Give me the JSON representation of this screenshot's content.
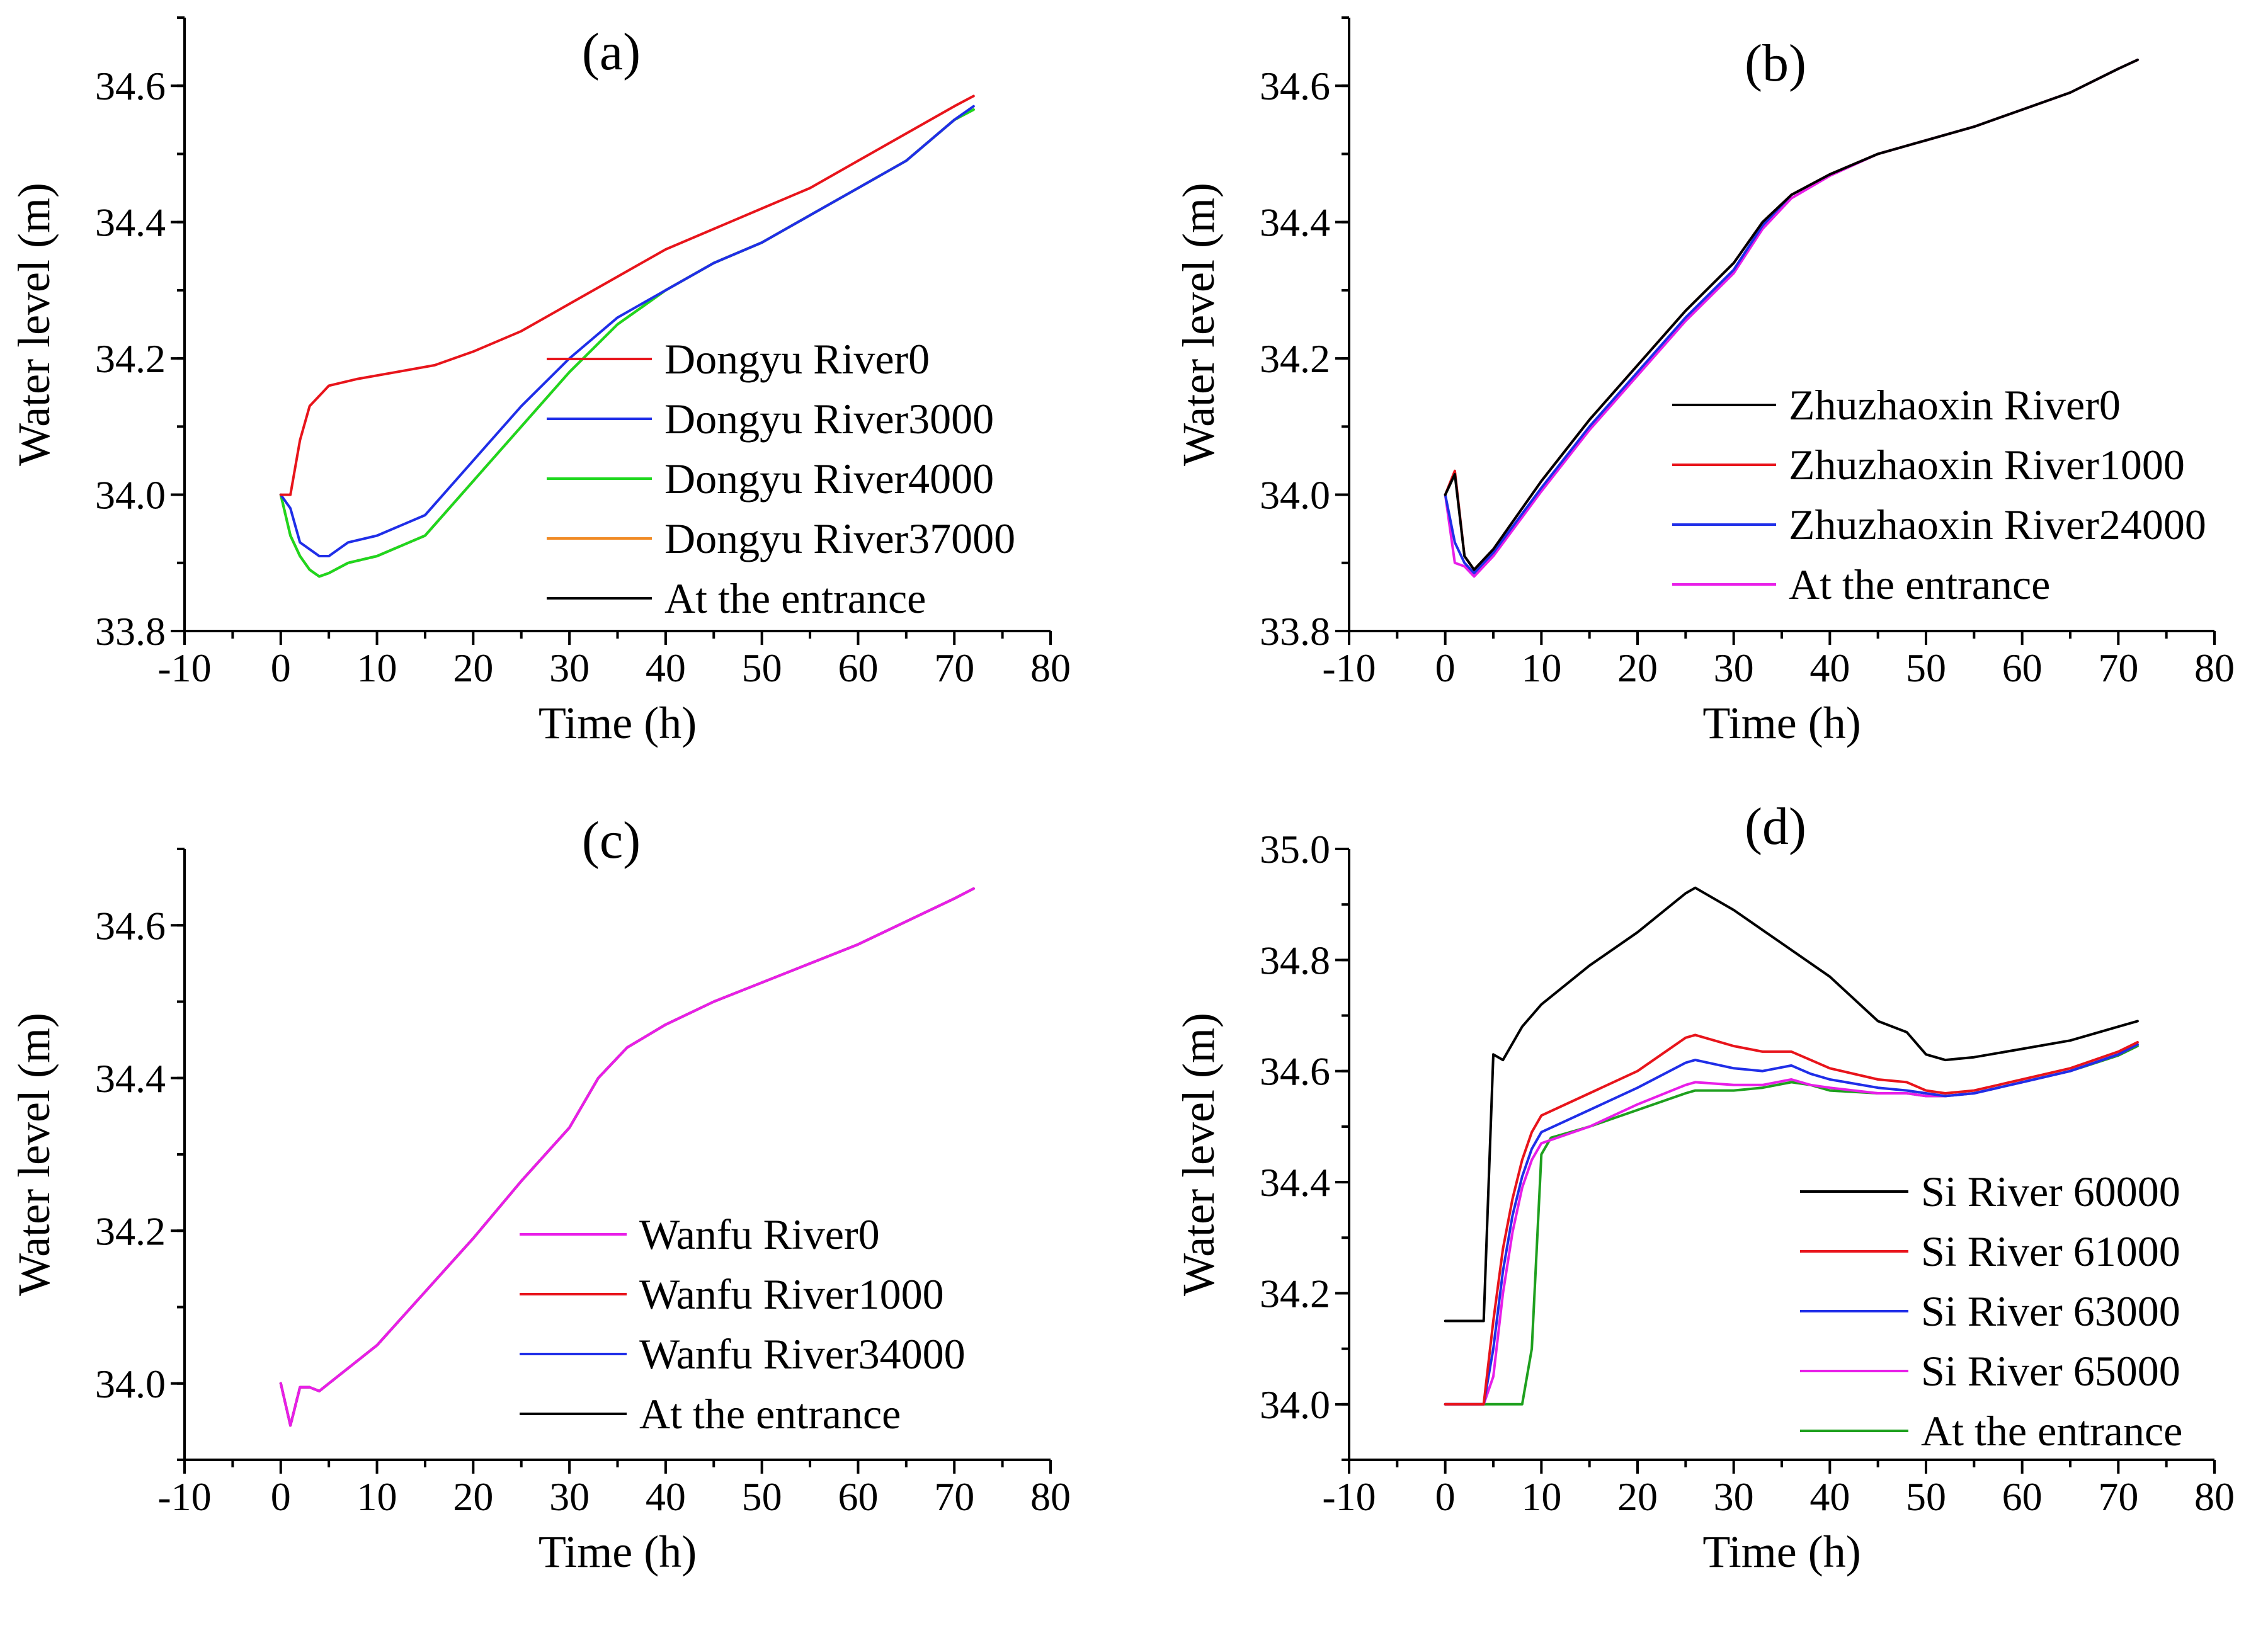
{
  "chart_data": [
    {
      "type": "line",
      "panel_label": "(a)",
      "xlabel": "Time (h)",
      "ylabel": "Water level (m)",
      "xlim": [
        -10,
        80
      ],
      "ylim": [
        33.8,
        34.7
      ],
      "xticks": [
        -10,
        0,
        10,
        20,
        30,
        40,
        50,
        60,
        70,
        80
      ],
      "xtick_labels": [
        "-10",
        "0",
        "10",
        "20",
        "30",
        "40",
        "50",
        "60",
        "70",
        "80"
      ],
      "yticks": [
        33.8,
        34.0,
        34.2,
        34.4,
        34.6
      ],
      "ytick_labels": [
        "33.8",
        "34.0",
        "34.2",
        "34.4",
        "34.6"
      ],
      "legend_position": "center-right",
      "series": [
        {
          "name": "Dongyu River0",
          "color": "#e8141b",
          "x": [
            0,
            1,
            2,
            3,
            5,
            8,
            12,
            16,
            20,
            25,
            30,
            35,
            40,
            45,
            50,
            55,
            60,
            65,
            70,
            72
          ],
          "y": [
            34.0,
            34.0,
            34.08,
            34.13,
            34.16,
            34.17,
            34.18,
            34.19,
            34.21,
            34.24,
            34.28,
            34.32,
            34.36,
            34.39,
            34.42,
            34.45,
            34.49,
            34.53,
            34.57,
            34.585
          ]
        },
        {
          "name": "Dongyu River3000",
          "color": "#1f2ee8",
          "x": [
            0,
            1,
            2,
            3,
            4,
            5,
            7,
            10,
            15,
            20,
            25,
            30,
            35,
            40,
            45,
            50,
            55,
            60,
            65,
            70,
            72
          ],
          "y": [
            34.0,
            33.98,
            33.93,
            33.92,
            33.91,
            33.91,
            33.93,
            33.94,
            33.97,
            34.05,
            34.13,
            34.2,
            34.26,
            34.3,
            34.34,
            34.37,
            34.41,
            34.45,
            34.49,
            34.55,
            34.57
          ]
        },
        {
          "name": "Dongyu River4000",
          "color": "#1ed81e",
          "x": [
            0,
            1,
            2,
            3,
            4,
            5,
            7,
            10,
            15,
            20,
            25,
            30,
            35,
            40,
            45,
            50,
            55,
            60,
            65,
            70,
            72
          ],
          "y": [
            34.0,
            33.94,
            33.91,
            33.89,
            33.88,
            33.885,
            33.9,
            33.91,
            33.94,
            34.02,
            34.1,
            34.18,
            34.25,
            34.3,
            34.34,
            34.37,
            34.41,
            34.45,
            34.49,
            34.55,
            34.565
          ]
        },
        {
          "name": "Dongyu River37000",
          "color": "#f08a24",
          "x": [
            0,
            1,
            2,
            3,
            4,
            5,
            7,
            10,
            15,
            20,
            25,
            30,
            35,
            40,
            45,
            50,
            55,
            60,
            65,
            70,
            72
          ],
          "y": [
            34.0,
            33.94,
            33.91,
            33.89,
            33.88,
            33.885,
            33.9,
            33.91,
            33.94,
            34.02,
            34.1,
            34.18,
            34.25,
            34.3,
            34.34,
            34.37,
            34.41,
            34.45,
            34.49,
            34.55,
            34.565
          ]
        },
        {
          "name": "At the entrance",
          "color": "#000000",
          "x": [
            0,
            1,
            2,
            3,
            4,
            5,
            7,
            10,
            15,
            20,
            25,
            30,
            35,
            40,
            45,
            50,
            55,
            60,
            65,
            70,
            72
          ],
          "y": [
            34.0,
            33.94,
            33.91,
            33.89,
            33.88,
            33.885,
            33.9,
            33.91,
            33.94,
            34.02,
            34.1,
            34.18,
            34.25,
            34.3,
            34.34,
            34.37,
            34.41,
            34.45,
            34.49,
            34.55,
            34.565
          ]
        }
      ]
    },
    {
      "type": "line",
      "panel_label": "(b)",
      "xlabel": "Time (h)",
      "ylabel": "Water level (m)",
      "xlim": [
        -10,
        80
      ],
      "ylim": [
        33.8,
        34.7
      ],
      "xticks": [
        -10,
        0,
        10,
        20,
        30,
        40,
        50,
        60,
        70,
        80
      ],
      "xtick_labels": [
        "-10",
        "0",
        "10",
        "20",
        "30",
        "40",
        "50",
        "60",
        "70",
        "80"
      ],
      "yticks": [
        33.8,
        34.0,
        34.2,
        34.4,
        34.6
      ],
      "ytick_labels": [
        "33.8",
        "34.0",
        "34.2",
        "34.4",
        "34.6"
      ],
      "legend_position": "center-right",
      "series": [
        {
          "name": "Zhuzhaoxin River0",
          "color": "#000000",
          "x": [
            0,
            1,
            2,
            3,
            5,
            10,
            15,
            20,
            25,
            30,
            33,
            36,
            40,
            45,
            50,
            55,
            60,
            65,
            70,
            72
          ],
          "y": [
            34.0,
            34.03,
            33.91,
            33.89,
            33.92,
            34.02,
            34.11,
            34.19,
            34.27,
            34.34,
            34.4,
            34.44,
            34.47,
            34.5,
            34.52,
            34.54,
            34.565,
            34.59,
            34.625,
            34.638
          ]
        },
        {
          "name": "Zhuzhaoxin River1000",
          "color": "#e8141b",
          "x": [
            0,
            1,
            2,
            3,
            5,
            10,
            15,
            20,
            25,
            30,
            33,
            36,
            40,
            45,
            50,
            55,
            60,
            65,
            70,
            72
          ],
          "y": [
            34.0,
            34.035,
            33.91,
            33.89,
            33.92,
            34.02,
            34.11,
            34.19,
            34.27,
            34.34,
            34.4,
            34.44,
            34.47,
            34.5,
            34.52,
            34.54,
            34.565,
            34.59,
            34.625,
            34.638
          ]
        },
        {
          "name": "Zhuzhaoxin River24000",
          "color": "#1f2ee8",
          "x": [
            0,
            1,
            2,
            3,
            5,
            10,
            15,
            20,
            25,
            30,
            33,
            36,
            40,
            45,
            50,
            55,
            60,
            65,
            70,
            72
          ],
          "y": [
            34.0,
            33.93,
            33.9,
            33.885,
            33.915,
            34.01,
            34.1,
            34.18,
            34.26,
            34.33,
            34.395,
            34.44,
            34.47,
            34.5,
            34.52,
            34.54,
            34.565,
            34.59,
            34.625,
            34.638
          ]
        },
        {
          "name": "At the entrance",
          "color": "#e81ee8",
          "x": [
            0,
            1,
            2,
            3,
            5,
            10,
            15,
            20,
            25,
            30,
            33,
            36,
            40,
            45,
            50,
            55,
            60,
            65,
            70,
            72
          ],
          "y": [
            34.0,
            33.9,
            33.895,
            33.88,
            33.91,
            34.005,
            34.095,
            34.175,
            34.255,
            34.325,
            34.39,
            34.435,
            34.468,
            34.5,
            34.52,
            34.54,
            34.565,
            34.59,
            34.625,
            34.638
          ]
        }
      ]
    },
    {
      "type": "line",
      "panel_label": "(c)",
      "xlabel": "Time (h)",
      "ylabel": "Water level (m)",
      "xlim": [
        -10,
        80
      ],
      "ylim": [
        33.9,
        34.7
      ],
      "xticks": [
        -10,
        0,
        10,
        20,
        30,
        40,
        50,
        60,
        70,
        80
      ],
      "xtick_labels": [
        "-10",
        "0",
        "10",
        "20",
        "30",
        "40",
        "50",
        "60",
        "70",
        "80"
      ],
      "yticks": [
        34.0,
        34.2,
        34.4,
        34.6
      ],
      "ytick_labels": [
        "34.0",
        "34.2",
        "34.4",
        "34.6"
      ],
      "legend_position": "center-right",
      "series": [
        {
          "name": "Wanfu River0",
          "color": "#e81ee8",
          "x": [
            0,
            1,
            2,
            3,
            4,
            5,
            10,
            15,
            20,
            25,
            30,
            33,
            36,
            40,
            45,
            50,
            55,
            60,
            65,
            70,
            72
          ],
          "y": [
            34.0,
            33.945,
            33.995,
            33.995,
            33.99,
            34.0,
            34.05,
            34.12,
            34.19,
            34.265,
            34.335,
            34.4,
            34.44,
            34.47,
            34.5,
            34.525,
            34.55,
            34.575,
            34.605,
            34.635,
            34.648
          ]
        },
        {
          "name": "Wanfu River1000",
          "color": "#e8141b",
          "x": [
            0,
            1,
            2,
            3,
            4,
            5,
            10,
            15,
            20,
            25,
            30,
            33,
            36,
            40,
            45,
            50,
            55,
            60,
            65,
            70,
            72
          ],
          "y": [
            34.0,
            33.945,
            33.995,
            33.995,
            33.99,
            34.0,
            34.05,
            34.12,
            34.19,
            34.265,
            34.335,
            34.4,
            34.44,
            34.47,
            34.5,
            34.525,
            34.55,
            34.575,
            34.605,
            34.635,
            34.648
          ]
        },
        {
          "name": "Wanfu River34000",
          "color": "#1f2ee8",
          "x": [
            0,
            1,
            2,
            3,
            4,
            5,
            10,
            15,
            20,
            25,
            30,
            33,
            36,
            40,
            45,
            50,
            55,
            60,
            65,
            70,
            72
          ],
          "y": [
            34.0,
            33.945,
            33.995,
            33.995,
            33.99,
            34.0,
            34.05,
            34.12,
            34.19,
            34.265,
            34.335,
            34.4,
            34.44,
            34.47,
            34.5,
            34.525,
            34.55,
            34.575,
            34.605,
            34.635,
            34.648
          ]
        },
        {
          "name": "At the entrance",
          "color": "#000000",
          "x": [
            0,
            1,
            2,
            3,
            4,
            5,
            10,
            15,
            20,
            25,
            30,
            33,
            36,
            40,
            45,
            50,
            55,
            60,
            65,
            70,
            72
          ],
          "y": [
            34.0,
            33.945,
            33.995,
            33.995,
            33.99,
            34.0,
            34.05,
            34.12,
            34.19,
            34.265,
            34.335,
            34.4,
            34.44,
            34.47,
            34.5,
            34.525,
            34.55,
            34.575,
            34.605,
            34.635,
            34.648
          ]
        }
      ]
    },
    {
      "type": "line",
      "panel_label": "(d)",
      "xlabel": "Time (h)",
      "ylabel": "Water level (m)",
      "xlim": [
        -10,
        80
      ],
      "ylim": [
        33.9,
        35.0
      ],
      "xticks": [
        -10,
        0,
        10,
        20,
        30,
        40,
        50,
        60,
        70,
        80
      ],
      "xtick_labels": [
        "-10",
        "0",
        "10",
        "20",
        "30",
        "40",
        "50",
        "60",
        "70",
        "80"
      ],
      "yticks": [
        34.0,
        34.2,
        34.4,
        34.6,
        34.8,
        35.0
      ],
      "ytick_labels": [
        "34.0",
        "34.2",
        "34.4",
        "34.6",
        "34.8",
        "35.0"
      ],
      "legend_position": "lower-right",
      "series": [
        {
          "name": "Si River 60000",
          "color": "#000000",
          "x": [
            0,
            4,
            5,
            6,
            8,
            10,
            15,
            20,
            25,
            26,
            30,
            35,
            40,
            45,
            48,
            50,
            52,
            55,
            60,
            65,
            70,
            72
          ],
          "y": [
            34.15,
            34.15,
            34.63,
            34.62,
            34.68,
            34.72,
            34.79,
            34.85,
            34.92,
            34.93,
            34.89,
            34.83,
            34.77,
            34.69,
            34.67,
            34.63,
            34.62,
            34.625,
            34.64,
            34.655,
            34.68,
            34.69
          ]
        },
        {
          "name": "Si River 61000",
          "color": "#e8141b",
          "x": [
            0,
            4,
            5,
            6,
            7,
            8,
            9,
            10,
            15,
            20,
            25,
            26,
            30,
            33,
            36,
            38,
            40,
            45,
            48,
            50,
            52,
            55,
            60,
            65,
            70,
            72
          ],
          "y": [
            34.0,
            34.0,
            34.15,
            34.28,
            34.37,
            34.44,
            34.49,
            34.52,
            34.56,
            34.6,
            34.66,
            34.665,
            34.645,
            34.635,
            34.635,
            34.62,
            34.605,
            34.585,
            34.58,
            34.565,
            34.56,
            34.565,
            34.585,
            34.605,
            34.635,
            34.652
          ]
        },
        {
          "name": "Si River 63000",
          "color": "#1f2ee8",
          "x": [
            0,
            4,
            5,
            6,
            7,
            8,
            9,
            10,
            15,
            20,
            25,
            26,
            30,
            33,
            36,
            38,
            40,
            45,
            48,
            50,
            52,
            55,
            60,
            65,
            70,
            72
          ],
          "y": [
            34.0,
            34.0,
            34.1,
            34.24,
            34.34,
            34.41,
            34.46,
            34.49,
            34.53,
            34.57,
            34.615,
            34.62,
            34.605,
            34.6,
            34.61,
            34.595,
            34.585,
            34.57,
            34.565,
            34.56,
            34.555,
            34.56,
            34.58,
            34.6,
            34.63,
            34.648
          ]
        },
        {
          "name": "Si River 65000",
          "color": "#e81ee8",
          "x": [
            0,
            4,
            5,
            6,
            7,
            8,
            9,
            10,
            15,
            20,
            25,
            26,
            30,
            33,
            36,
            38,
            40,
            45,
            48,
            50,
            52,
            55,
            60,
            65,
            70,
            72
          ],
          "y": [
            34.0,
            34.0,
            34.05,
            34.2,
            34.31,
            34.39,
            34.44,
            34.47,
            34.5,
            34.54,
            34.575,
            34.58,
            34.575,
            34.575,
            34.585,
            34.575,
            34.57,
            34.56,
            34.56,
            34.555,
            34.555,
            34.56,
            34.58,
            34.6,
            34.63,
            34.648
          ]
        },
        {
          "name": "At the entrance",
          "color": "#1ea01e",
          "x": [
            0,
            4,
            6,
            8,
            9,
            10,
            11,
            15,
            20,
            25,
            26,
            30,
            33,
            36,
            38,
            40,
            45,
            48,
            50,
            52,
            55,
            60,
            65,
            70,
            72
          ],
          "y": [
            34.0,
            34.0,
            34.0,
            34.0,
            34.1,
            34.45,
            34.48,
            34.5,
            34.53,
            34.56,
            34.565,
            34.565,
            34.57,
            34.58,
            34.575,
            34.565,
            34.56,
            34.56,
            34.555,
            34.555,
            34.56,
            34.58,
            34.6,
            34.628,
            34.645
          ]
        }
      ]
    }
  ]
}
